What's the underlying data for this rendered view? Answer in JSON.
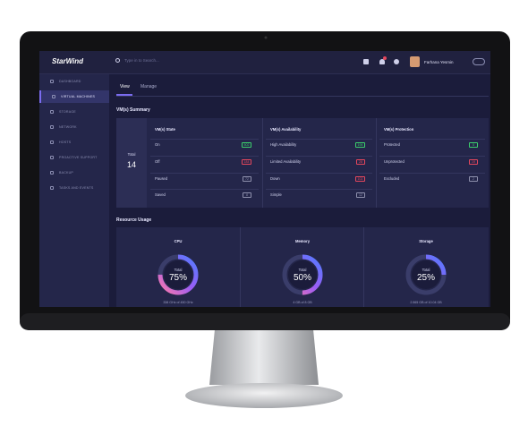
{
  "header": {
    "logo": "StarWind",
    "search_placeholder": "Type in to Search...",
    "user_name": "Farhana Yesmin"
  },
  "sidebar": {
    "items": [
      "DASHBOARD",
      "VIRTUAL MACHINES",
      "STORAGE",
      "NETWORK",
      "HOSTS",
      "PROACTIVE SUPPORT",
      "BACKUP",
      "TASKS AND EVENTS"
    ]
  },
  "tabs": [
    "View",
    "Manage"
  ],
  "summary": {
    "title": "VM(s) Summary",
    "total_label": "Total",
    "total": 14,
    "columns": [
      {
        "title": "VM(s) State",
        "rows": [
          {
            "label": "On",
            "value": 502,
            "color": "#3ccf6c"
          },
          {
            "label": "Off",
            "value": 184,
            "color": "#e5475d"
          },
          {
            "label": "Paused",
            "value": 72,
            "color": "#8e90ad"
          },
          {
            "label": "Saved",
            "value": 8,
            "color": "#8e90ad"
          }
        ]
      },
      {
        "title": "VM(s) Availability",
        "rows": [
          {
            "label": "High Availability",
            "value": 194,
            "color": "#3ccf6c"
          },
          {
            "label": "Limited Availability",
            "value": 28,
            "color": "#e5475d"
          },
          {
            "label": "Down",
            "value": 102,
            "color": "#e5475d"
          },
          {
            "label": "Simple",
            "value": 12,
            "color": "#8e90ad"
          }
        ]
      },
      {
        "title": "VM(s) Protection",
        "rows": [
          {
            "label": "Protected",
            "value": 5,
            "color": "#3ccf6c"
          },
          {
            "label": "Unprotected",
            "value": 19,
            "color": "#e5475d"
          },
          {
            "label": "Excluded",
            "value": 2,
            "color": "#8e90ad"
          }
        ]
      }
    ]
  },
  "resources": {
    "title": "Resource Usage",
    "items": [
      {
        "name": "CPU",
        "total_label": "Total",
        "percent": 75,
        "percent_label": "75%",
        "caption": "338 GHz of 450 GHz"
      },
      {
        "name": "Memory",
        "total_label": "Total",
        "percent": 50,
        "percent_label": "50%",
        "caption": "4 GB of 8 GB"
      },
      {
        "name": "Storage",
        "total_label": "Total",
        "percent": 25,
        "percent_label": "25%",
        "caption": "2.565 GB of 10.04 GB"
      }
    ]
  }
}
